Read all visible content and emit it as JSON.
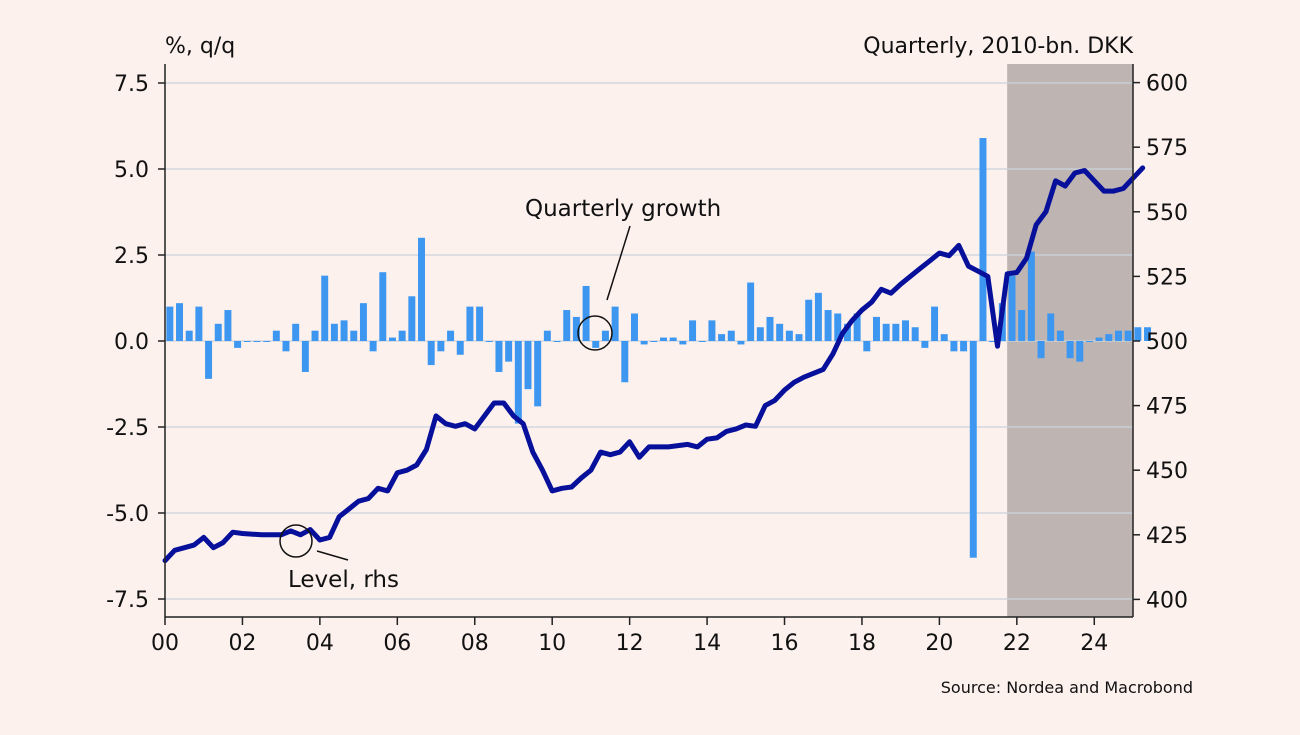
{
  "chart_data": {
    "type": "bar+line",
    "left_axis_label": "%, q/q",
    "right_axis_label": "Quarterly, 2010-bn. DKK",
    "source": "Source: Nordea and Macrobond",
    "annotations": {
      "growth": "Quarterly growth",
      "level": "Level, rhs"
    },
    "x_ticks": [
      "00",
      "02",
      "04",
      "06",
      "08",
      "10",
      "12",
      "14",
      "16",
      "18",
      "20",
      "22",
      "24"
    ],
    "x_tick_years": [
      2000,
      2002,
      2004,
      2006,
      2008,
      2010,
      2012,
      2014,
      2016,
      2018,
      2020,
      2022,
      2024
    ],
    "x_range": [
      2000.0,
      2025.0
    ],
    "left_ticks": [
      "7.5",
      "5.0",
      "2.5",
      "0.0",
      "-2.5",
      "-5.0",
      "-7.5"
    ],
    "left_tick_values": [
      7.5,
      5.0,
      2.5,
      0.0,
      -2.5,
      -5.0,
      -7.5
    ],
    "ylim_left": [
      -8.0,
      8.0
    ],
    "right_ticks": [
      "600",
      "575",
      "550",
      "525",
      "500",
      "475",
      "450",
      "425",
      "400"
    ],
    "right_tick_values": [
      600,
      575,
      550,
      525,
      500,
      475,
      450,
      425,
      400
    ],
    "ylim_right": [
      397.0,
      610.0
    ],
    "forecast_shading": {
      "from": 2021.75,
      "to": 2025.0,
      "color": "#beb4b2"
    },
    "colors": {
      "bars": "#3d97f0",
      "line": "#07109a",
      "grid": "#c9d4dd",
      "axis": "#222222",
      "background": "#fdf1ee"
    },
    "quarters_start": 2000.0,
    "growth": [
      1.0,
      1.1,
      0.3,
      1.0,
      -1.1,
      0.5,
      0.9,
      -0.2,
      0.0,
      0.0,
      0.0,
      0.3,
      -0.3,
      0.5,
      -0.9,
      0.3,
      1.9,
      0.5,
      0.6,
      0.3,
      1.1,
      -0.3,
      2.0,
      0.1,
      0.3,
      1.3,
      3.0,
      -0.7,
      -0.3,
      0.3,
      -0.4,
      1.0,
      1.0,
      0.0,
      -0.9,
      -0.6,
      -2.4,
      -1.4,
      -1.9,
      0.3,
      0.0,
      0.9,
      0.7,
      1.6,
      -0.2,
      0.3,
      1.0,
      -1.2,
      0.8,
      -0.1,
      0.0,
      0.1,
      0.1,
      -0.1,
      0.6,
      0.0,
      0.6,
      0.2,
      0.3,
      -0.1,
      1.7,
      0.4,
      0.7,
      0.5,
      0.3,
      0.2,
      1.2,
      1.4,
      0.9,
      0.8,
      0.5,
      0.8,
      -0.3,
      0.7,
      0.5,
      0.5,
      0.6,
      0.4,
      -0.2,
      1.0,
      0.2,
      -0.3,
      -0.3,
      -6.3,
      5.9,
      0.0,
      1.1,
      1.9,
      0.9,
      2.6,
      -0.5,
      0.8,
      0.3,
      -0.5,
      -0.6,
      0.0,
      0.1,
      0.2,
      0.3,
      0.3,
      0.4,
      0.4
    ],
    "level_points": [
      [
        2000.0,
        415
      ],
      [
        2000.25,
        419
      ],
      [
        2000.5,
        420
      ],
      [
        2000.75,
        421
      ],
      [
        2001.0,
        424
      ],
      [
        2001.25,
        420
      ],
      [
        2001.5,
        422
      ],
      [
        2001.75,
        426
      ],
      [
        2002.0,
        425.5
      ],
      [
        2002.5,
        425
      ],
      [
        2003.0,
        425
      ],
      [
        2003.25,
        426.5
      ],
      [
        2003.5,
        425
      ],
      [
        2003.75,
        427
      ],
      [
        2004.0,
        423
      ],
      [
        2004.25,
        424
      ],
      [
        2004.5,
        432
      ],
      [
        2004.75,
        435
      ],
      [
        2005.0,
        438
      ],
      [
        2005.25,
        439
      ],
      [
        2005.5,
        443
      ],
      [
        2005.75,
        442
      ],
      [
        2006.0,
        449
      ],
      [
        2006.25,
        450
      ],
      [
        2006.5,
        452
      ],
      [
        2006.75,
        458
      ],
      [
        2007.0,
        471
      ],
      [
        2007.25,
        468
      ],
      [
        2007.5,
        467
      ],
      [
        2007.75,
        468
      ],
      [
        2008.0,
        466
      ],
      [
        2008.5,
        476
      ],
      [
        2008.75,
        476
      ],
      [
        2009.0,
        471
      ],
      [
        2009.25,
        468
      ],
      [
        2009.5,
        457
      ],
      [
        2009.75,
        450
      ],
      [
        2010.0,
        442
      ],
      [
        2010.25,
        443
      ],
      [
        2010.5,
        443.5
      ],
      [
        2010.75,
        447
      ],
      [
        2011.0,
        450
      ],
      [
        2011.25,
        457
      ],
      [
        2011.5,
        456
      ],
      [
        2011.75,
        457
      ],
      [
        2012.0,
        461
      ],
      [
        2012.25,
        455
      ],
      [
        2012.5,
        459
      ],
      [
        2013.0,
        459
      ],
      [
        2013.5,
        460
      ],
      [
        2013.75,
        459
      ],
      [
        2014.0,
        462
      ],
      [
        2014.25,
        462.5
      ],
      [
        2014.5,
        465
      ],
      [
        2014.75,
        466
      ],
      [
        2015.0,
        467.5
      ],
      [
        2015.25,
        467
      ],
      [
        2015.5,
        475
      ],
      [
        2015.75,
        477
      ],
      [
        2016.0,
        481
      ],
      [
        2016.25,
        484
      ],
      [
        2016.5,
        486
      ],
      [
        2016.75,
        487.5
      ],
      [
        2017.0,
        489
      ],
      [
        2017.25,
        495
      ],
      [
        2017.5,
        503
      ],
      [
        2017.75,
        508
      ],
      [
        2018.0,
        512
      ],
      [
        2018.25,
        515
      ],
      [
        2018.5,
        520
      ],
      [
        2018.75,
        518.5
      ],
      [
        2019.0,
        522
      ],
      [
        2019.5,
        528
      ],
      [
        2019.75,
        531
      ],
      [
        2020.0,
        534
      ],
      [
        2020.25,
        533
      ],
      [
        2020.5,
        537
      ],
      [
        2020.75,
        529
      ],
      [
        2021.0,
        527
      ],
      [
        2021.25,
        525
      ],
      [
        2021.5,
        498
      ],
      [
        2021.75,
        526
      ],
      [
        2022.0,
        526.5
      ],
      [
        2022.25,
        532
      ],
      [
        2022.5,
        545
      ],
      [
        2022.75,
        550
      ],
      [
        2023.0,
        562
      ],
      [
        2023.25,
        560
      ],
      [
        2023.5,
        565
      ],
      [
        2023.75,
        566
      ],
      [
        2024.0,
        562
      ],
      [
        2024.25,
        558
      ],
      [
        2024.5,
        558
      ],
      [
        2024.75,
        559
      ],
      [
        2025.0,
        563
      ],
      [
        2025.25,
        567
      ]
    ]
  }
}
